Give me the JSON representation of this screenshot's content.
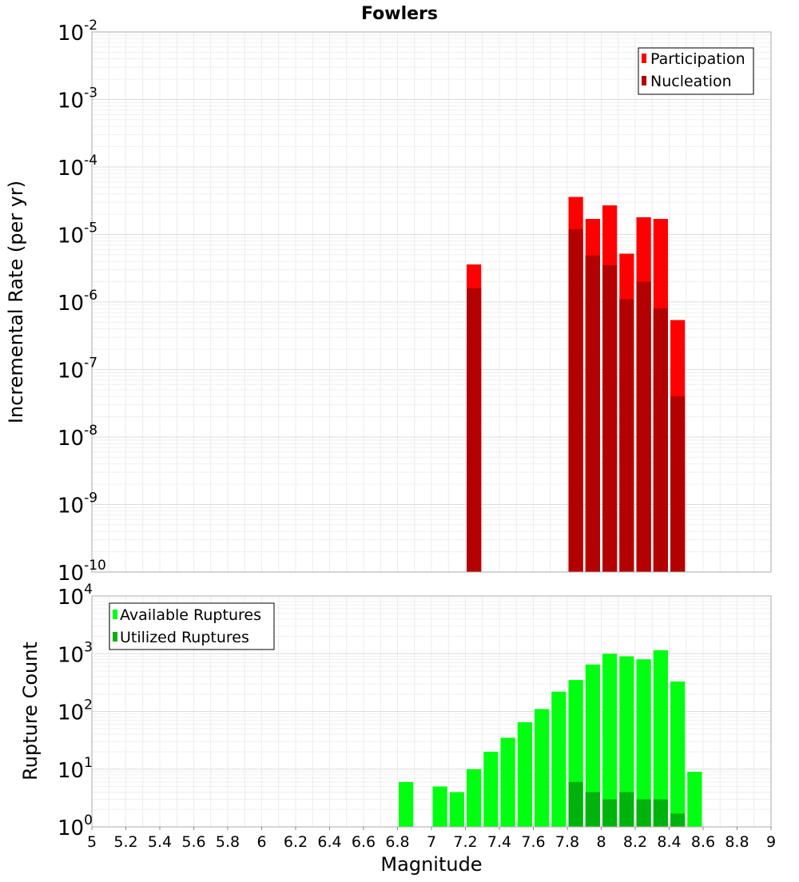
{
  "chart_data": [
    {
      "type": "bar",
      "title": "Fowlers",
      "xlabel": "",
      "ylabel": "Incremental Rate (per yr)",
      "yscale": "log",
      "ylim_exp": [
        -10,
        -2
      ],
      "xlim": [
        5,
        9
      ],
      "bin_width": 0.1,
      "legend_position": "top-right",
      "series": [
        {
          "name": "Participation",
          "color": "#ff0000",
          "x": [
            7.25,
            7.85,
            7.95,
            8.05,
            8.15,
            8.25,
            8.35,
            8.45
          ],
          "values": [
            3.6e-06,
            3.6e-05,
            1.7e-05,
            2.7e-05,
            5.2e-06,
            1.8e-05,
            1.7e-05,
            5.4e-07
          ]
        },
        {
          "name": "Nucleation",
          "color": "#b30000",
          "x": [
            7.25,
            7.85,
            7.95,
            8.05,
            8.15,
            8.25,
            8.35,
            8.45
          ],
          "values": [
            1.6e-06,
            1.2e-05,
            4.9e-06,
            3.5e-06,
            1.1e-06,
            2e-06,
            8e-07,
            4e-08
          ]
        }
      ]
    },
    {
      "type": "bar",
      "title": "",
      "xlabel": "Magnitude",
      "ylabel": "Rupture Count",
      "yscale": "log",
      "ylim_exp": [
        0,
        4
      ],
      "xlim": [
        5,
        9
      ],
      "bin_width": 0.1,
      "legend_position": "top-left",
      "series": [
        {
          "name": "Available Ruptures",
          "color": "#00ff11",
          "x": [
            6.85,
            7.05,
            7.15,
            7.25,
            7.35,
            7.45,
            7.55,
            7.65,
            7.75,
            7.85,
            7.95,
            8.05,
            8.15,
            8.25,
            8.35,
            8.45,
            8.55
          ],
          "values": [
            6,
            5,
            4,
            10,
            20,
            35,
            65,
            110,
            220,
            350,
            650,
            1000,
            900,
            800,
            1150,
            330,
            9
          ]
        },
        {
          "name": "Utilized Ruptures",
          "color": "#00b30c",
          "x": [
            7.25,
            7.85,
            7.95,
            8.05,
            8.15,
            8.25,
            8.35,
            8.45
          ],
          "values": [
            1,
            6,
            4,
            3,
            4,
            3,
            3,
            1.7
          ]
        }
      ]
    }
  ],
  "x_ticks": [
    "5",
    "5.2",
    "5.4",
    "5.6",
    "5.8",
    "6",
    "6.2",
    "6.4",
    "6.6",
    "6.8",
    "7",
    "7.2",
    "7.4",
    "7.6",
    "7.8",
    "8",
    "8.2",
    "8.4",
    "8.6",
    "8.8",
    "9"
  ]
}
